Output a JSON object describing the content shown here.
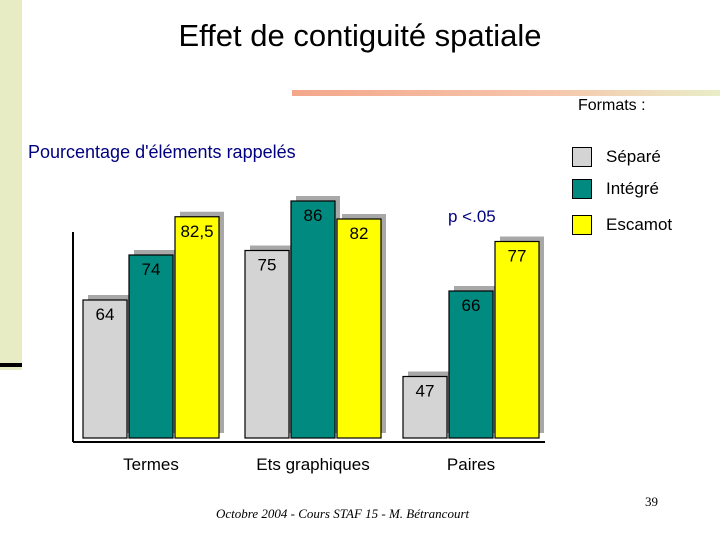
{
  "slide": {
    "title": "Effet de contiguité spatiale",
    "footer": "Octobre 2004 - Cours STAF 15 - M. Bétrancourt",
    "page_number": "39",
    "accent_color": "#000080"
  },
  "chart_data": {
    "type": "bar",
    "subtitle": "Pourcentage d'éléments rappelés",
    "legend_title": "Formats :",
    "legend_position": "right",
    "categories": [
      "Termes",
      "Ets graphiques",
      "Paires"
    ],
    "series": [
      {
        "name": "Séparé",
        "color": "#d4d4d4",
        "values": [
          64,
          75,
          47
        ],
        "labels": [
          "64",
          "75",
          "47"
        ]
      },
      {
        "name": "Intégré",
        "color": "#008a80",
        "values": [
          74,
          86,
          66
        ],
        "labels": [
          "74",
          "86",
          "66"
        ]
      },
      {
        "name": "Escamot",
        "color": "#ffff00",
        "values": [
          82.5,
          82,
          77
        ],
        "labels": [
          "82,5",
          "82",
          "77"
        ]
      }
    ],
    "annotation": "p <.05",
    "ylim": [
      0,
      100
    ],
    "grid": false
  }
}
